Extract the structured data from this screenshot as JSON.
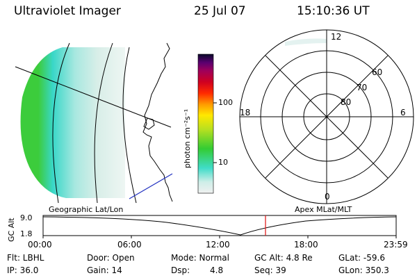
{
  "header": {
    "instrument": "Ultraviolet Imager",
    "date": "25 Jul 07",
    "time": "15:10:36 UT"
  },
  "colorbar": {
    "unit_label": "photon cm⁻²s⁻¹",
    "ticks": [
      "100",
      "10"
    ]
  },
  "polar_plot": {
    "mlt_labels": [
      "12",
      "18",
      "6",
      "0"
    ],
    "lat_labels": [
      "60",
      "70",
      "80"
    ]
  },
  "altitude_panel": {
    "left_caption": "Geographic Lat/Lon",
    "right_caption": "Apex MLat/MLT",
    "axis_title": "GC Alt",
    "y_ticks": [
      "9.0",
      "1.8"
    ],
    "x_ticks": [
      "00:00",
      "06:00",
      "12:00",
      "18:00",
      "23:59"
    ],
    "marker_color": "#e02020"
  },
  "status": {
    "flt": "Flt: LBHL",
    "ip": "IP: 36.0",
    "door": "Door: Open",
    "gain": "Gain: 14",
    "mode": "Mode: Normal",
    "dsp_label": "Dsp:",
    "dsp_value": "4.8",
    "gc_alt": "GC Alt: 4.8 Re",
    "seq": "Seq: 39",
    "glat": "GLat: -59.6",
    "glon": "GLon: 350.3"
  }
}
